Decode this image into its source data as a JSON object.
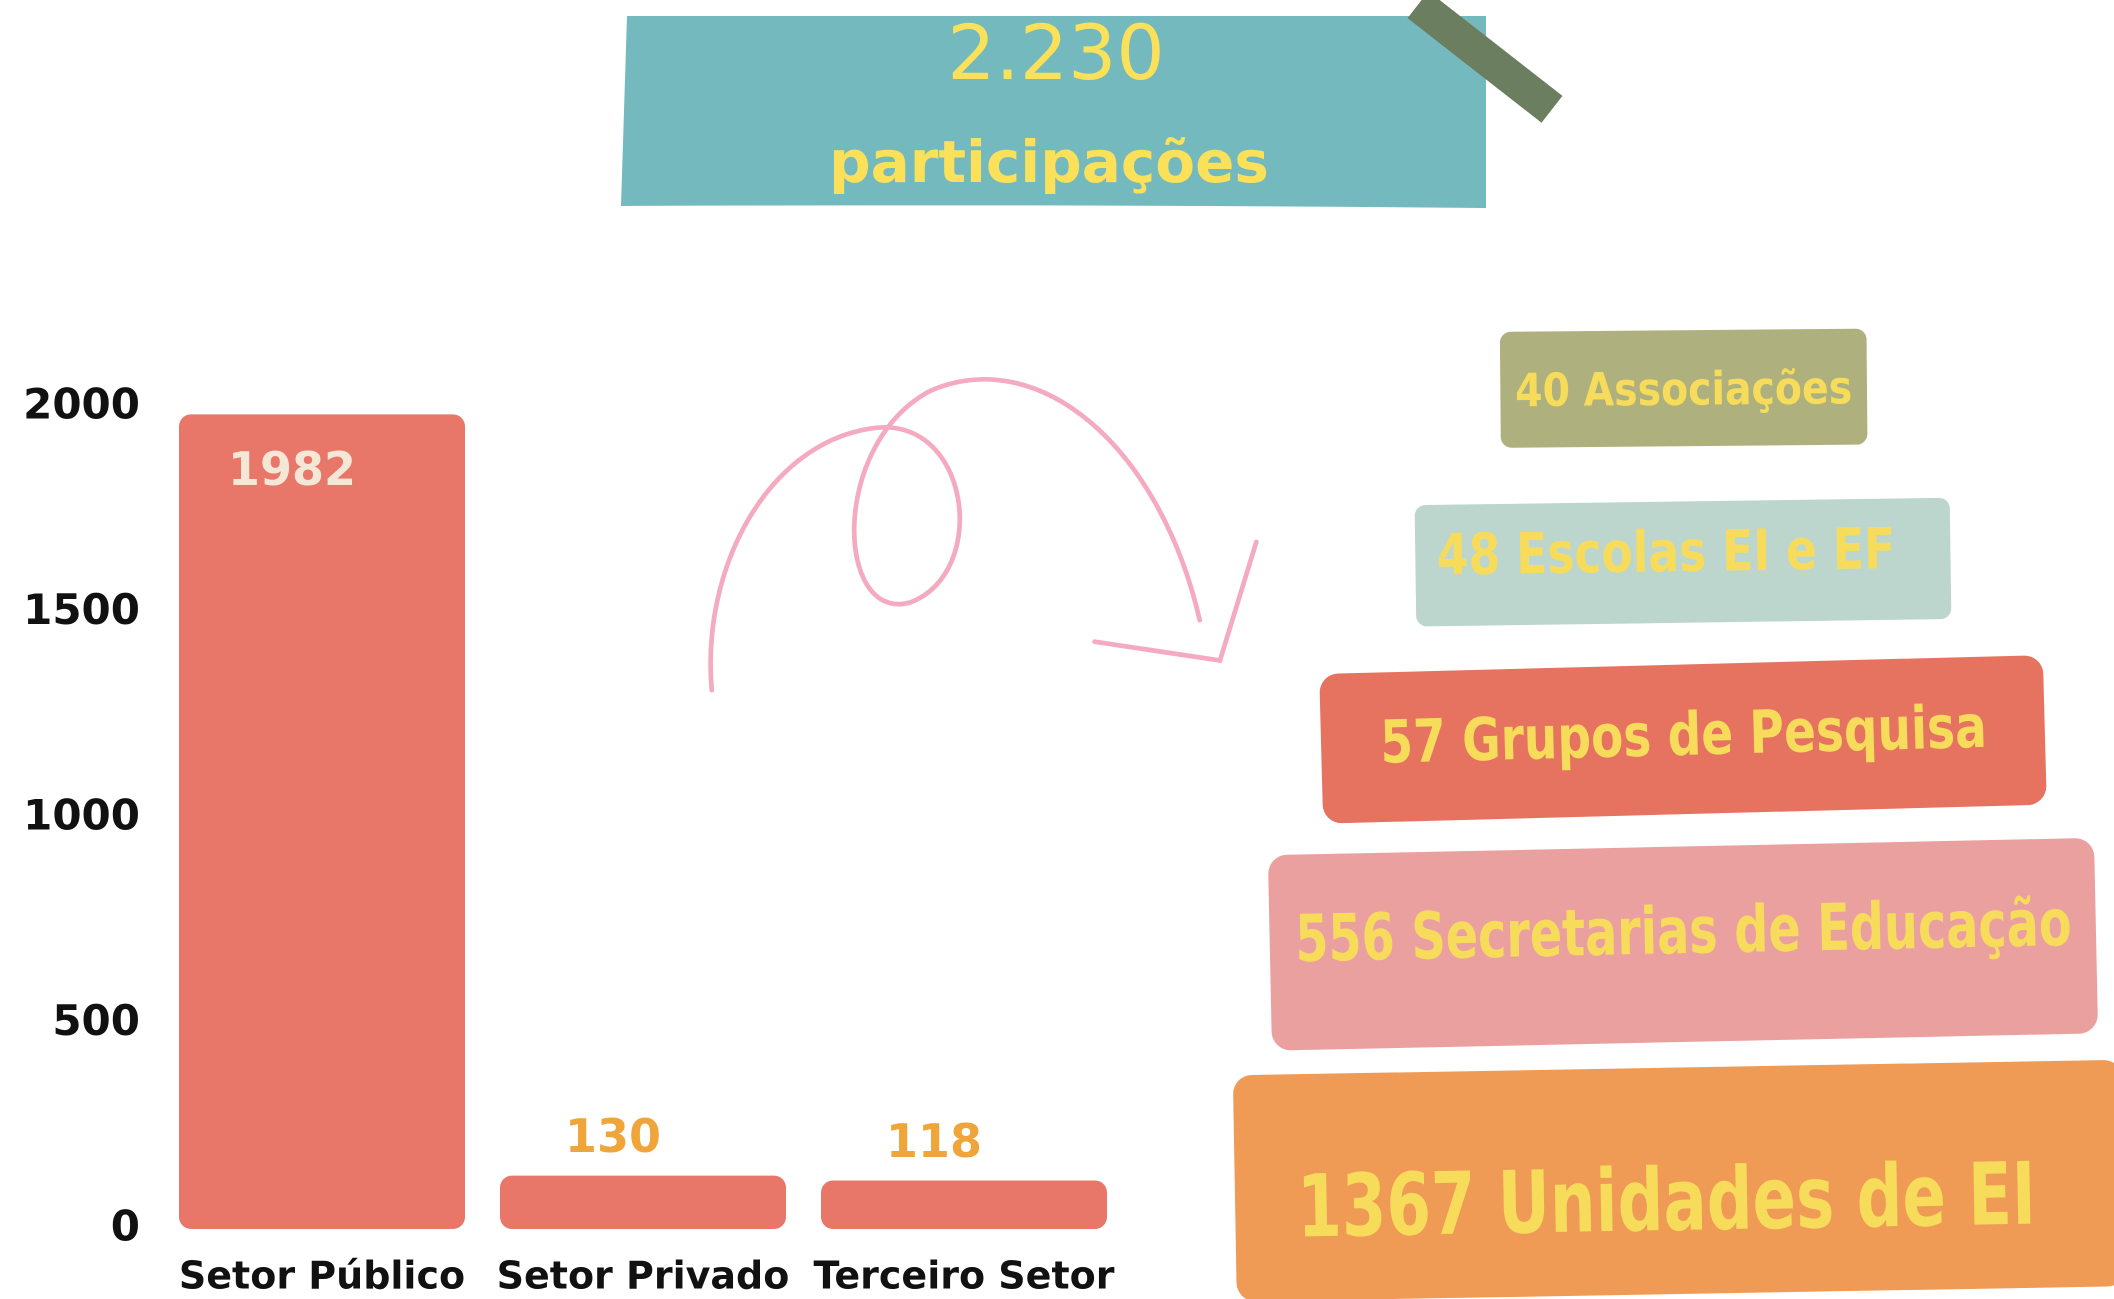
{
  "banner": {
    "total": "2.230",
    "caption": "participações"
  },
  "chart_data": {
    "type": "bar",
    "categories": [
      "Setor Público",
      "Setor Privado",
      "Terceiro Setor"
    ],
    "values": [
      1982,
      130,
      118
    ],
    "color": "#e8776a",
    "ylim": [
      0,
      2000
    ],
    "yticks": [
      0,
      500,
      1000,
      1500,
      2000
    ],
    "grid": false
  },
  "breakdown": [
    "40 Associações",
    "48 Escolas EI e EF",
    "57 Grupos de Pesquisa",
    "556 Secretarias de Educação",
    "1367  Unidades de EI"
  ]
}
